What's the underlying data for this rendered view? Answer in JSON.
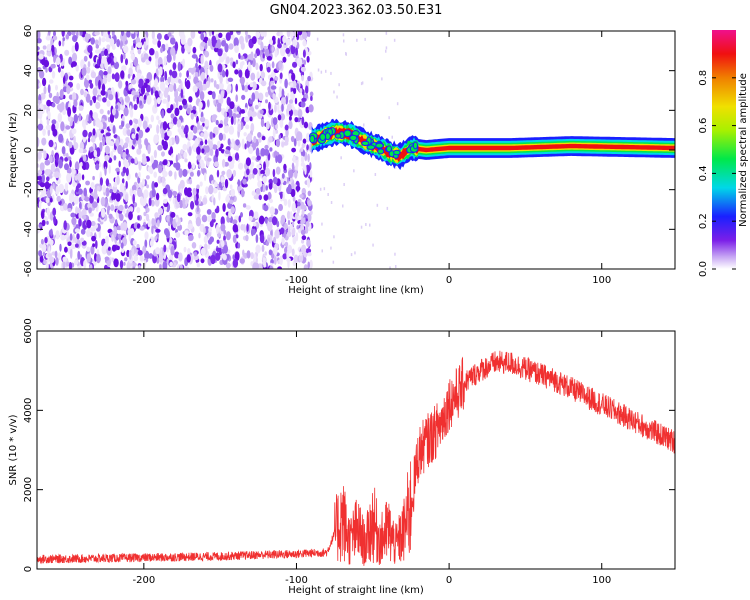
{
  "title": "GN04.2023.362.03.50.E31",
  "chart_data": [
    {
      "type": "heatmap",
      "xlabel": "Height of straight line (km)",
      "ylabel": "Frequency (Hz)",
      "xlim": [
        -270,
        148
      ],
      "ylim": [
        -60,
        60
      ],
      "xticks": [
        -200,
        -100,
        0,
        100
      ],
      "yticks": [
        -60,
        -40,
        -20,
        0,
        20,
        40,
        60
      ],
      "grid": false,
      "colorbar": {
        "label": "Normalized spectral amplitude",
        "range": [
          0,
          1
        ],
        "ticks": [
          0.0,
          0.2,
          0.4,
          0.6,
          0.8
        ],
        "colormap": "rainbow (purple-blue-cyan-green-yellow-red-magenta)"
      },
      "features": [
        {
          "name": "noise",
          "x_range": [
            -270,
            -90
          ],
          "y_range": [
            -60,
            60
          ]
        },
        {
          "name": "signal",
          "x_range": [
            -90,
            148
          ],
          "path": [
            [
              -90,
              5
            ],
            [
              -75,
              9
            ],
            [
              -65,
              8
            ],
            [
              -55,
              4
            ],
            [
              -45,
              1
            ],
            [
              -38,
              -2
            ],
            [
              -32,
              -3
            ],
            [
              -25,
              1
            ],
            [
              -15,
              0
            ],
            [
              0,
              1
            ],
            [
              40,
              1
            ],
            [
              80,
              2
            ],
            [
              148,
              1
            ]
          ]
        }
      ]
    },
    {
      "type": "line",
      "xlabel": "Height of straight line (km)",
      "ylabel": "SNR (10 * v/v)",
      "xlim": [
        -270,
        148
      ],
      "ylim": [
        0,
        6000
      ],
      "xticks": [
        -200,
        -100,
        0,
        100
      ],
      "yticks": [
        0,
        2000,
        4000,
        6000
      ],
      "grid": false,
      "color": "#f03030",
      "x": [
        -270,
        -240,
        -210,
        -180,
        -150,
        -120,
        -100,
        -90,
        -80,
        -75,
        -70,
        -65,
        -60,
        -55,
        -50,
        -45,
        -40,
        -35,
        -30,
        -25,
        -20,
        -15,
        -10,
        -5,
        0,
        5,
        10,
        20,
        30,
        40,
        50,
        60,
        70,
        80,
        90,
        100,
        110,
        120,
        130,
        140,
        148
      ],
      "y": [
        250,
        260,
        280,
        300,
        320,
        360,
        380,
        400,
        420,
        900,
        1300,
        700,
        1000,
        600,
        1200,
        700,
        1000,
        600,
        900,
        1600,
        2900,
        3200,
        3400,
        3700,
        4200,
        4400,
        4700,
        5000,
        5200,
        5200,
        5050,
        4900,
        4750,
        4550,
        4350,
        4150,
        3950,
        3750,
        3550,
        3350,
        3200
      ]
    }
  ]
}
